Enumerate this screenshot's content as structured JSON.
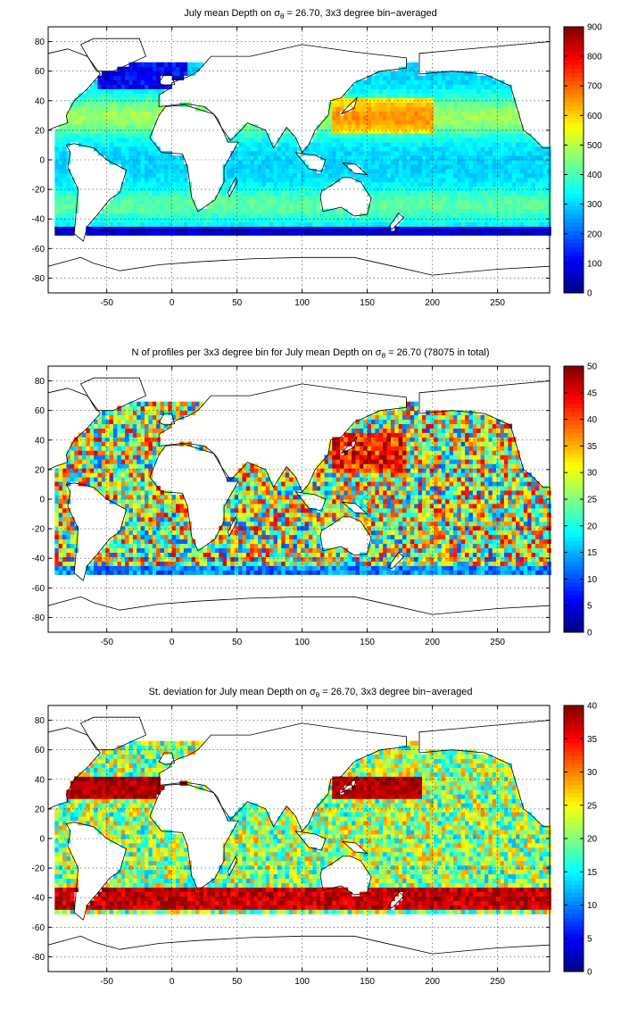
{
  "chart_data": [
    {
      "type": "heatmap",
      "title_parts": [
        "July mean Depth on ",
        "σ",
        "θ",
        " = 26.70, 3x3 degree bin−averaged"
      ],
      "xlim": [
        -95,
        290
      ],
      "ylim": [
        -90,
        90
      ],
      "xticks": [
        -50,
        0,
        50,
        100,
        150,
        200,
        250
      ],
      "yticks": [
        -80,
        -60,
        -40,
        -20,
        0,
        20,
        40,
        60,
        80
      ],
      "colorbar": {
        "min": 0,
        "max": 900,
        "ticks": [
          0,
          100,
          200,
          300,
          400,
          500,
          600,
          700,
          800,
          900
        ]
      },
      "grid": true
    },
    {
      "type": "heatmap",
      "title_parts": [
        "N of profiles per 3x3 degree bin for July mean Depth on ",
        "σ",
        "θ",
        " = 26.70 (78075 in total)"
      ],
      "xlim": [
        -95,
        290
      ],
      "ylim": [
        -90,
        90
      ],
      "xticks": [
        -50,
        0,
        50,
        100,
        150,
        200,
        250
      ],
      "yticks": [
        -80,
        -60,
        -40,
        -20,
        0,
        20,
        40,
        60,
        80
      ],
      "colorbar": {
        "min": 0,
        "max": 50,
        "ticks": [
          0,
          5,
          10,
          15,
          20,
          25,
          30,
          35,
          40,
          45,
          50
        ]
      },
      "grid": true
    },
    {
      "type": "heatmap",
      "title_parts": [
        "St. deviation for July mean Depth on ",
        "σ",
        "θ",
        " = 26.70, 3x3 degree bin−averaged"
      ],
      "xlim": [
        -95,
        290
      ],
      "ylim": [
        -90,
        90
      ],
      "xticks": [
        -50,
        0,
        50,
        100,
        150,
        200,
        250
      ],
      "yticks": [
        -80,
        -60,
        -40,
        -20,
        0,
        20,
        40,
        60,
        80
      ],
      "colorbar": {
        "min": 0,
        "max": 40,
        "ticks": [
          0,
          5,
          10,
          15,
          20,
          25,
          30,
          35,
          40
        ]
      },
      "grid": true
    }
  ]
}
